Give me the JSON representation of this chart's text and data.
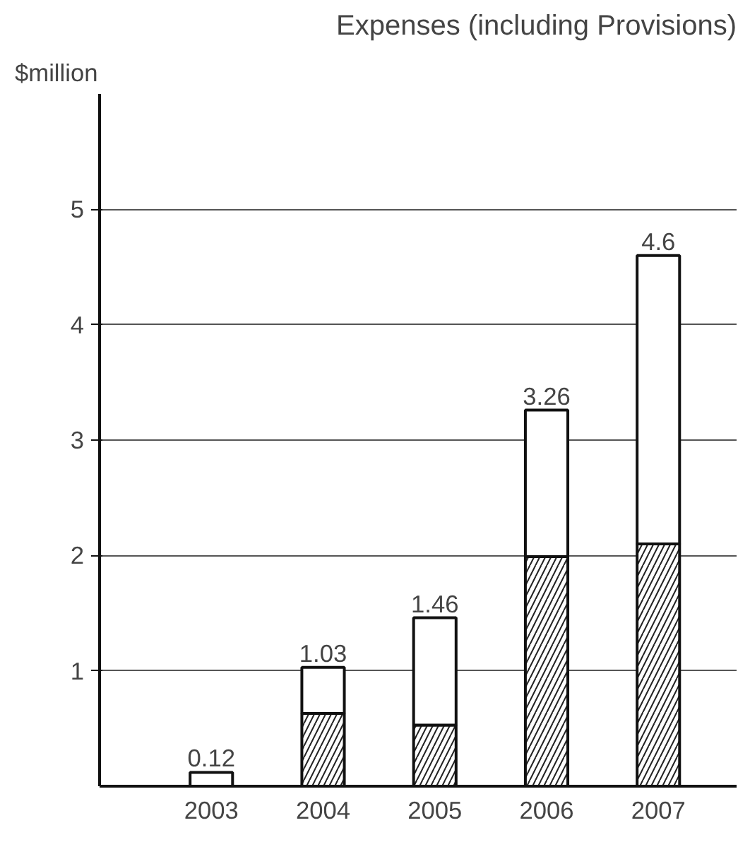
{
  "chart_data": {
    "type": "bar",
    "title": "Expenses (including Provisions)",
    "ylabel": "$million",
    "categories": [
      "2003",
      "2004",
      "2005",
      "2006",
      "2007"
    ],
    "stacked": true,
    "series": [
      {
        "color": "#ffffff",
        "values": [
          0,
          0.63,
          0.53,
          1.99,
          2.1
        ]
      },
      {
        "color": "#ffffff",
        "values": [
          0.12,
          0.4,
          0.93,
          1.27,
          2.5
        ]
      }
    ],
    "totals": [
      "0.12",
      "1.03",
      "1.46",
      "3.26",
      "4.6"
    ],
    "ylim": [
      0,
      6
    ],
    "yticks": [
      1,
      2,
      3,
      4,
      5
    ],
    "grid": "y"
  }
}
